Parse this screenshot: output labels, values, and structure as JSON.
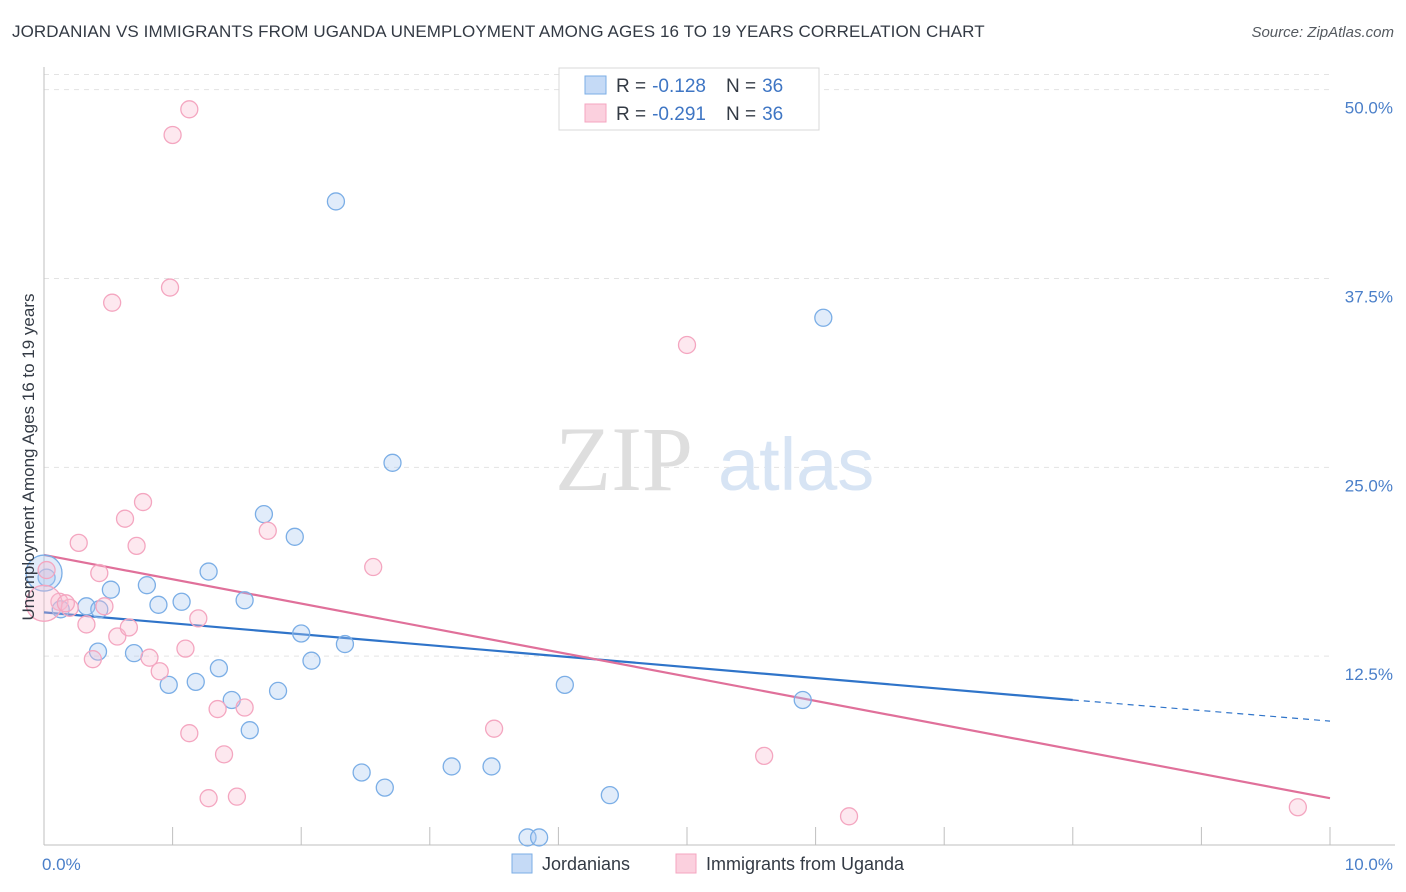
{
  "header": {
    "title": "JORDANIAN VS IMMIGRANTS FROM UGANDA UNEMPLOYMENT AMONG AGES 16 TO 19 YEARS CORRELATION CHART",
    "source": "Source: ZipAtlas.com"
  },
  "watermark": {
    "zip": "ZIP",
    "atlas": "atlas"
  },
  "chart_data": {
    "type": "scatter",
    "title": "JORDANIAN VS IMMIGRANTS FROM UGANDA UNEMPLOYMENT AMONG AGES 16 TO 19 YEARS CORRELATION CHART",
    "xlabel": "",
    "ylabel": "Unemployment Among Ages 16 to 19 years",
    "xlim": [
      0,
      10
    ],
    "ylim": [
      0,
      51.5
    ],
    "x_ticks": [
      0,
      10
    ],
    "x_tick_labels": [
      "0.0%",
      "10.0%"
    ],
    "y_ticks": [
      12.5,
      25.0,
      37.5,
      50.0
    ],
    "y_tick_labels": [
      "12.5%",
      "25.0%",
      "37.5%",
      "50.0%"
    ],
    "grid": true,
    "legend_placement": "bottom-center",
    "series": [
      {
        "name": "Jordanians",
        "color": "#7baee6",
        "r_label": "R =",
        "r_value": "-0.128",
        "n_label": "N =",
        "n_value": "36",
        "points": [
          [
            0.02,
            17.7
          ],
          [
            0.13,
            15.6
          ],
          [
            0.33,
            15.8
          ],
          [
            0.42,
            12.8
          ],
          [
            0.43,
            15.6
          ],
          [
            0.52,
            16.9
          ],
          [
            0.7,
            12.7
          ],
          [
            0.8,
            17.2
          ],
          [
            0.89,
            15.9
          ],
          [
            0.97,
            10.6
          ],
          [
            1.07,
            16.1
          ],
          [
            1.18,
            10.8
          ],
          [
            1.28,
            18.1
          ],
          [
            1.36,
            11.7
          ],
          [
            1.46,
            9.6
          ],
          [
            1.56,
            16.2
          ],
          [
            1.6,
            7.6
          ],
          [
            1.71,
            21.9
          ],
          [
            1.82,
            10.2
          ],
          [
            1.95,
            20.4
          ],
          [
            2.0,
            14.0
          ],
          [
            2.08,
            12.2
          ],
          [
            2.27,
            42.6
          ],
          [
            2.34,
            13.3
          ],
          [
            2.47,
            4.8
          ],
          [
            2.65,
            3.8
          ],
          [
            2.71,
            25.3
          ],
          [
            3.17,
            5.2
          ],
          [
            3.48,
            5.2
          ],
          [
            3.76,
            0.5
          ],
          [
            3.85,
            0.5
          ],
          [
            4.05,
            10.6
          ],
          [
            4.4,
            3.3
          ],
          [
            5.9,
            9.6
          ],
          [
            6.06,
            34.9
          ],
          [
            0.0,
            18.0
          ]
        ]
      },
      {
        "name": "Immigrants from Uganda",
        "color": "#f4a6c0",
        "r_label": "R =",
        "r_value": "-0.291",
        "n_label": "N =",
        "n_value": "36",
        "points": [
          [
            0.02,
            18.2
          ],
          [
            0.12,
            16.1
          ],
          [
            0.2,
            15.7
          ],
          [
            0.27,
            20.0
          ],
          [
            0.33,
            14.6
          ],
          [
            0.38,
            12.3
          ],
          [
            0.43,
            18.0
          ],
          [
            0.47,
            15.8
          ],
          [
            0.53,
            35.9
          ],
          [
            0.57,
            13.8
          ],
          [
            0.63,
            21.6
          ],
          [
            0.66,
            14.4
          ],
          [
            0.72,
            19.8
          ],
          [
            0.77,
            22.7
          ],
          [
            0.82,
            12.4
          ],
          [
            0.9,
            11.5
          ],
          [
            0.98,
            36.9
          ],
          [
            1.0,
            47.0
          ],
          [
            1.13,
            48.7
          ],
          [
            1.1,
            13.0
          ],
          [
            1.13,
            7.4
          ],
          [
            1.2,
            15.0
          ],
          [
            1.28,
            3.1
          ],
          [
            1.35,
            9.0
          ],
          [
            1.4,
            6.0
          ],
          [
            1.5,
            3.2
          ],
          [
            1.56,
            9.1
          ],
          [
            1.74,
            20.8
          ],
          [
            2.56,
            18.4
          ],
          [
            3.5,
            7.7
          ],
          [
            5.0,
            33.1
          ],
          [
            5.6,
            5.9
          ],
          [
            6.26,
            1.9
          ],
          [
            9.75,
            2.5
          ],
          [
            0.0,
            16.0
          ],
          [
            0.17,
            16.0
          ]
        ]
      }
    ],
    "trendlines": [
      {
        "series": "Jordanians",
        "x0": 0.0,
        "y0": 15.4,
        "x1": 8.0,
        "y1": 9.6,
        "dashed_to": 10.0,
        "dashed_y": 8.2
      },
      {
        "series": "Immigrants from Uganda",
        "x0": 0.0,
        "y0": 19.2,
        "x1": 10.0,
        "y1": 3.1
      }
    ]
  }
}
